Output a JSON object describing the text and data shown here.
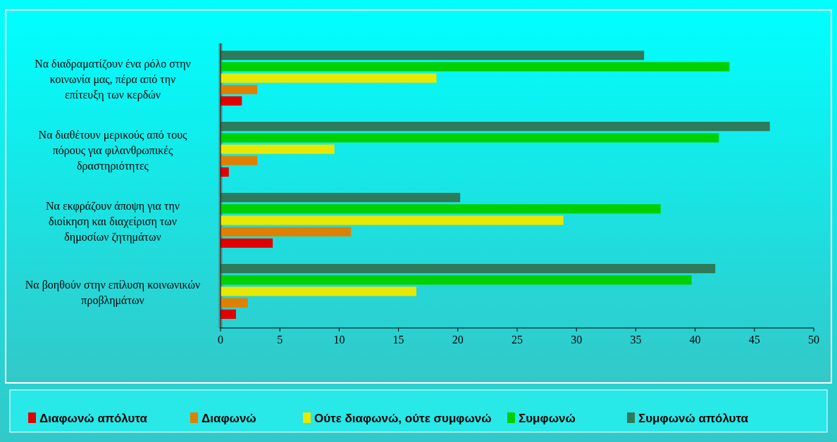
{
  "chart_data": {
    "type": "bar",
    "orientation": "horizontal",
    "categories": [
      "Να διαδραματίζουν ένα ρόλο στην κοινωνία μας, πέρα από την επίτευξη των κερδών",
      "Να διαθέτουν μερικούς από τους πόρους για φιλανθρωπικές δραστηριότητες",
      "Να εκφράζουν άποψη για την διοίκηση και διαχείριση των δημοσίων ζητημάτων",
      "Να βοηθούν στην επίλυση κοινωνικών προβλημάτων"
    ],
    "series": [
      {
        "name": "Διαφωνώ απόλυτα",
        "color": "#e00000",
        "values": [
          1.8,
          0.7,
          4.4,
          1.3
        ]
      },
      {
        "name": "Διαφωνώ",
        "color": "#e08000",
        "values": [
          3.1,
          3.1,
          11.0,
          2.3
        ]
      },
      {
        "name": "Ούτε διαφωνώ, ούτε συμφωνώ",
        "color": "#e8e800",
        "values": [
          18.2,
          9.6,
          28.9,
          16.5
        ]
      },
      {
        "name": "Συμφωνώ",
        "color": "#00d000",
        "values": [
          42.9,
          42.0,
          37.1,
          39.7
        ]
      },
      {
        "name": "Συμφωνώ απόλυτα",
        "color": "#2e7a5a",
        "values": [
          35.7,
          46.3,
          20.2,
          41.7
        ]
      }
    ],
    "xlim": [
      0,
      50
    ],
    "xticks": [
      0,
      5,
      10,
      15,
      20,
      25,
      30,
      35,
      40,
      45,
      50
    ],
    "grid": false,
    "legend": "bottom"
  }
}
